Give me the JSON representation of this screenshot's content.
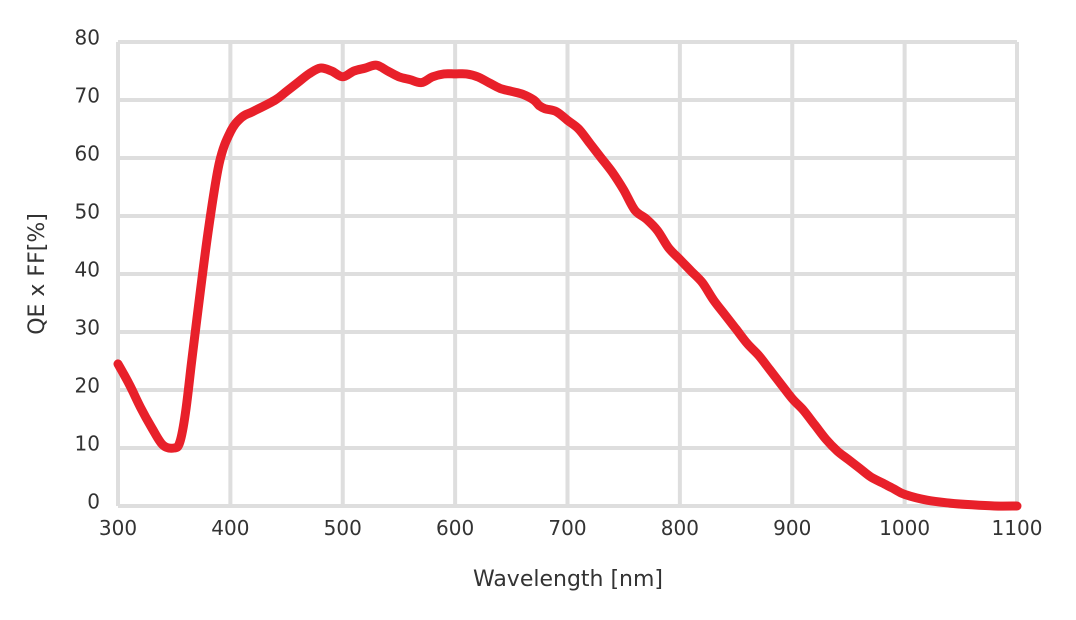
{
  "chart_data": {
    "type": "line",
    "title": "",
    "xlabel": "Wavelength [nm]",
    "ylabel": "QE x FF[%]",
    "xlim": [
      300,
      1100
    ],
    "ylim": [
      0,
      80
    ],
    "xticks": [
      "300",
      "400",
      "500",
      "600",
      "700",
      "800",
      "900",
      "1000",
      "1100"
    ],
    "yticks": [
      "0",
      "10",
      "20",
      "30",
      "40",
      "50",
      "60",
      "70",
      "80"
    ],
    "grid": true,
    "legend": "none",
    "colors": {
      "line": "#e8202a",
      "grid": "#dedede",
      "text": "#333333"
    },
    "series": [
      {
        "x": [
          300,
          310,
          320,
          330,
          340,
          350,
          355,
          360,
          365,
          370,
          380,
          390,
          400,
          410,
          420,
          440,
          450,
          460,
          470,
          480,
          490,
          500,
          510,
          520,
          530,
          540,
          550,
          560,
          570,
          580,
          590,
          600,
          610,
          620,
          630,
          640,
          650,
          660,
          670,
          675,
          680,
          690,
          700,
          710,
          720,
          730,
          740,
          750,
          760,
          770,
          780,
          790,
          800,
          810,
          820,
          830,
          840,
          850,
          860,
          870,
          880,
          890,
          900,
          910,
          920,
          930,
          940,
          950,
          960,
          970,
          980,
          990,
          1000,
          1020,
          1040,
          1060,
          1080,
          1100
        ],
        "y": [
          24.5,
          21,
          17,
          13.5,
          10.5,
          10,
          11,
          16,
          24,
          32,
          47,
          59,
          64.5,
          67,
          68,
          70,
          71.5,
          73,
          74.5,
          75.5,
          75,
          74,
          75,
          75.5,
          76,
          75,
          74,
          73.5,
          73,
          74,
          74.5,
          74.5,
          74.5,
          74,
          73,
          72,
          71.5,
          71,
          70,
          69,
          68.5,
          68,
          66.5,
          65,
          62.5,
          60,
          57.5,
          54.5,
          51,
          49.5,
          47.5,
          44.5,
          42.5,
          40.5,
          38.5,
          35.5,
          33,
          30.5,
          28,
          26,
          23.5,
          21,
          18.5,
          16.5,
          14,
          11.5,
          9.5,
          8,
          6.5,
          5,
          4,
          3,
          2,
          1,
          0.5,
          0.2,
          0,
          0
        ]
      }
    ]
  }
}
